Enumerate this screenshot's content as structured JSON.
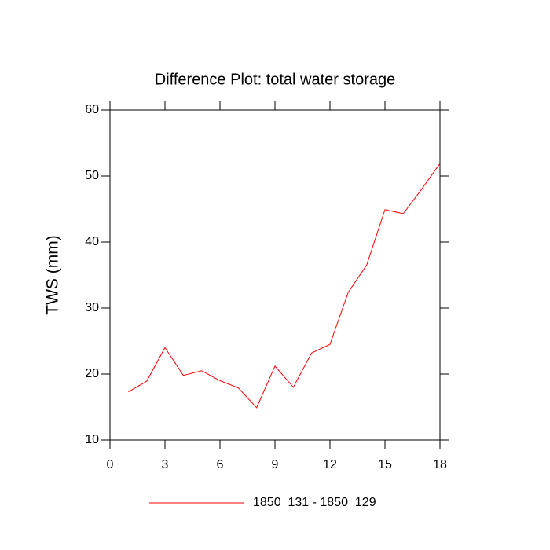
{
  "chart_data": {
    "type": "line",
    "title": "Difference Plot: total water storage",
    "y_label": "TWS  (mm)",
    "x": [
      1,
      2,
      3,
      4,
      5,
      6,
      7,
      8,
      9,
      10,
      11,
      12,
      13,
      14,
      15,
      16,
      17,
      18
    ],
    "series": [
      {
        "name": "1850_131 - 1850_129",
        "color": "#ff0000",
        "values": [
          17.3,
          18.9,
          24.0,
          19.8,
          20.5,
          19.0,
          17.9,
          14.9,
          21.2,
          18.0,
          23.2,
          24.5,
          32.4,
          36.5,
          44.9,
          44.3,
          48.0,
          51.9
        ]
      }
    ],
    "xlim": [
      0,
      18
    ],
    "xticks": [
      0,
      3,
      6,
      9,
      12,
      15,
      18
    ],
    "ylim": [
      10,
      60
    ],
    "yticks": [
      10,
      20,
      30,
      40,
      50,
      60
    ],
    "legend_position": "bottom"
  }
}
